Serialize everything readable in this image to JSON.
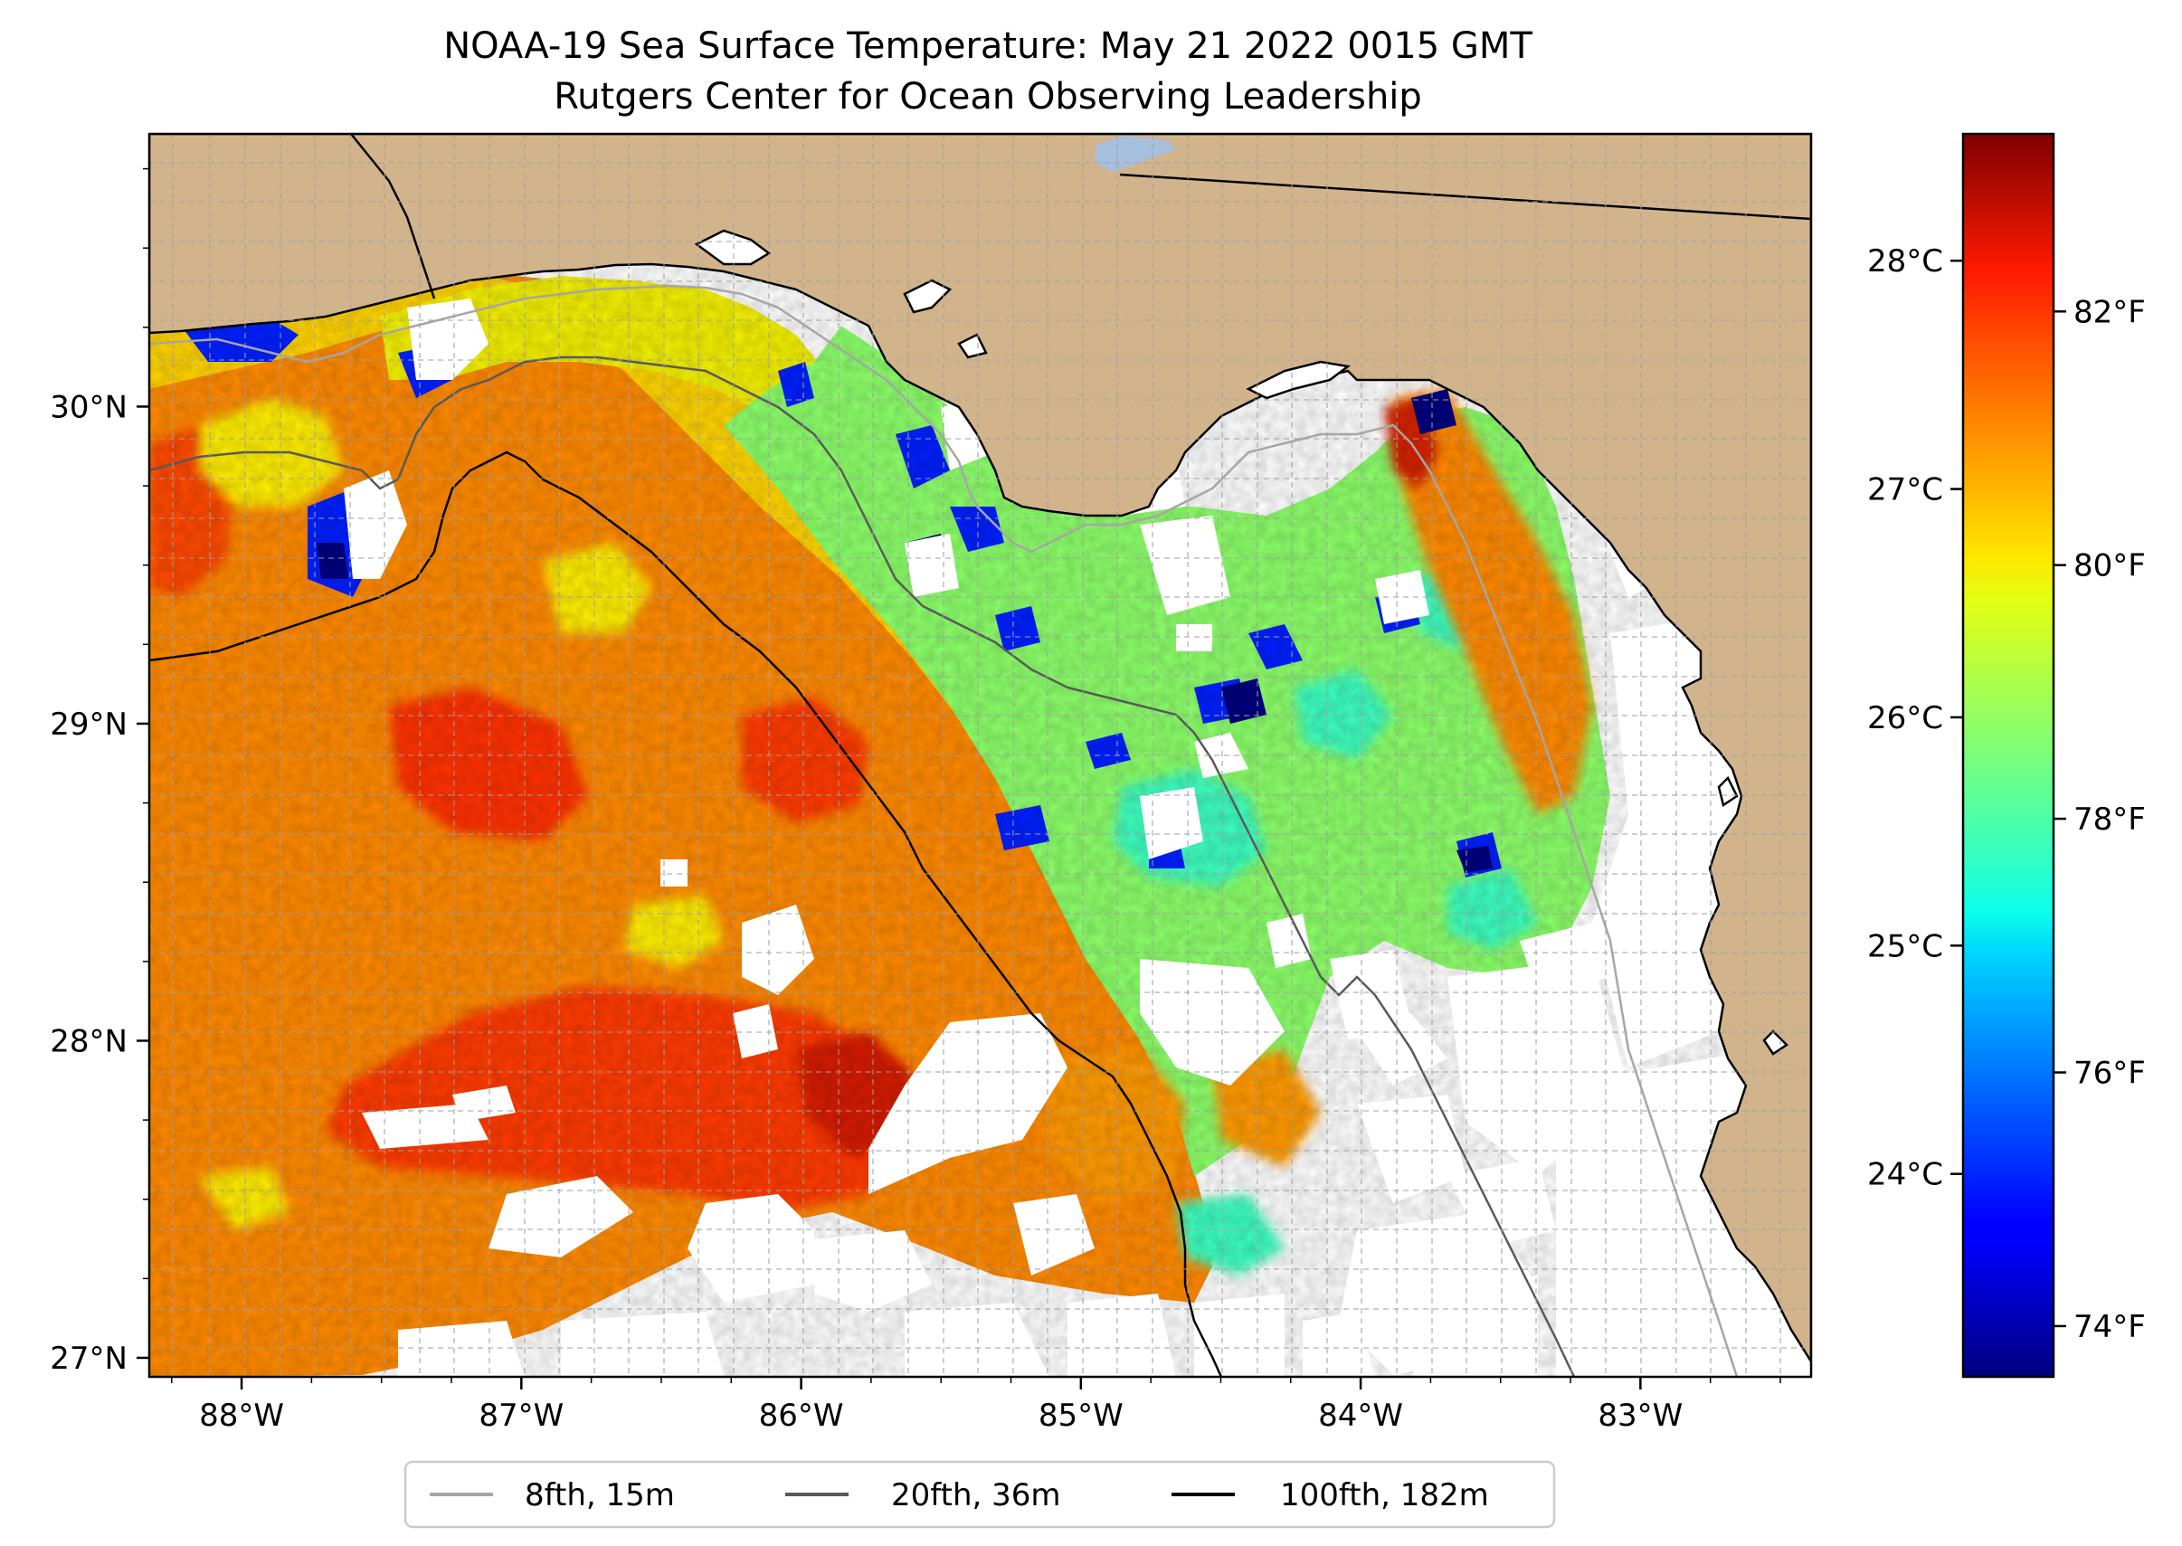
{
  "title": {
    "line1": "NOAA-19 Sea Surface Temperature: May 21 2022 0015 GMT",
    "line2": "Rutgers Center for Ocean Observing Leadership"
  },
  "map": {
    "lon_range": [
      -88.33,
      -82.39
    ],
    "lat_range": [
      26.94,
      30.86
    ],
    "lon_ticks": [
      {
        "value": -88,
        "label": "88°W"
      },
      {
        "value": -87,
        "label": "87°W"
      },
      {
        "value": -86,
        "label": "86°W"
      },
      {
        "value": -85,
        "label": "85°W"
      },
      {
        "value": -84,
        "label": "84°W"
      },
      {
        "value": -83,
        "label": "83°W"
      }
    ],
    "lat_ticks": [
      {
        "value": 30,
        "label": "30°N"
      },
      {
        "value": 29,
        "label": "29°N"
      },
      {
        "value": 28,
        "label": "28°N"
      },
      {
        "value": 27,
        "label": "27°N"
      }
    ],
    "colors": {
      "land": "#d2b48c",
      "no_data": "#ffffff",
      "gridline": "#a0a0a0"
    }
  },
  "colorbar": {
    "colormap": "jet",
    "fahrenheit_ticks": [
      {
        "value": 82,
        "label": "82°F"
      },
      {
        "value": 80,
        "label": "80°F"
      },
      {
        "value": 78,
        "label": "78°F"
      },
      {
        "value": 76,
        "label": "76°F"
      },
      {
        "value": 74,
        "label": "74°F"
      }
    ],
    "celsius_ticks": [
      {
        "value": 28,
        "label": "28°C"
      },
      {
        "value": 27,
        "label": "27°C"
      },
      {
        "value": 26,
        "label": "26°C"
      },
      {
        "value": 25,
        "label": "25°C"
      },
      {
        "value": 24,
        "label": "24°C"
      }
    ],
    "range_f": [
      73.6,
      83.4
    ]
  },
  "legend": [
    {
      "label": "8fth, 15m",
      "color": "#a6a6a6"
    },
    {
      "label": "20fth, 36m",
      "color": "#595959"
    },
    {
      "label": "100fth, 182m",
      "color": "#000000"
    }
  ]
}
